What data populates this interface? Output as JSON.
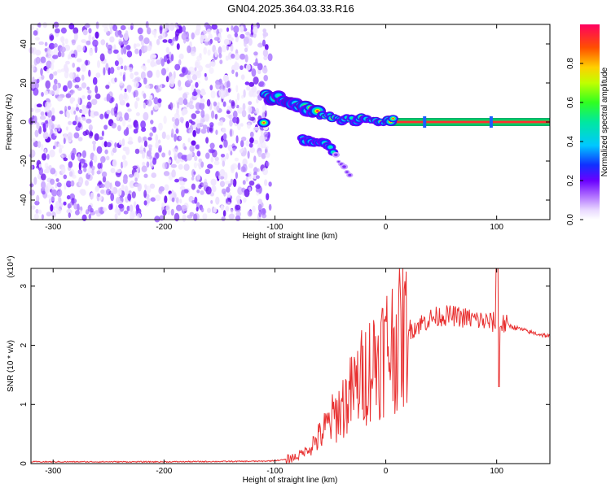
{
  "title": "GN04.2025.364.03.33.R16",
  "chart_data": [
    {
      "type": "heatmap",
      "title": "GN04.2025.364.03.33.R16",
      "xlabel": "Height of straight line (km)",
      "ylabel": "Frequency (Hz)",
      "xlim": [
        -320,
        148
      ],
      "ylim": [
        -50,
        50
      ],
      "x_ticks": [
        "-300",
        "-200",
        "-100",
        "0",
        "100"
      ],
      "y_ticks": [
        "-40",
        "-20",
        "0",
        "20",
        "40"
      ],
      "colorbar": {
        "label": "Normalized spectral amplitude",
        "range": [
          0,
          1
        ],
        "ticks": [
          "0.0",
          "0.2",
          "0.4",
          "0.6",
          "0.8"
        ]
      },
      "features": {
        "noise_region_x": [
          -320,
          -110
        ],
        "trace": [
          {
            "x": -108,
            "y": 13
          },
          {
            "x": -95,
            "y": 12
          },
          {
            "x": -85,
            "y": 10
          },
          {
            "x": -75,
            "y": 8
          },
          {
            "x": -60,
            "y": 4
          },
          {
            "x": -45,
            "y": 2
          },
          {
            "x": -30,
            "y": 1
          },
          {
            "x": -10,
            "y": 1
          },
          {
            "x": 5,
            "y": 0.5
          },
          {
            "x": 148,
            "y": 0
          }
        ],
        "lower_branch": [
          {
            "x": -75,
            "y": -9
          },
          {
            "x": -65,
            "y": -10
          },
          {
            "x": -50,
            "y": -12
          },
          {
            "x": -40,
            "y": -22
          },
          {
            "x": -32,
            "y": -28
          }
        ]
      }
    },
    {
      "type": "line",
      "xlabel": "Height of straight line (km)",
      "ylabel": "SNR (10 * v/v)",
      "y_multiplier": "(x10⁴)",
      "xlim": [
        -320,
        148
      ],
      "ylim": [
        0,
        3.3
      ],
      "x_ticks": [
        "-300",
        "-200",
        "-100",
        "0",
        "100"
      ],
      "y_ticks": [
        "0",
        "1",
        "2",
        "3"
      ],
      "series": [
        {
          "color": "#e83030",
          "x": [
            -320,
            -200,
            -110,
            -100,
            -90,
            -80,
            -70,
            -60,
            -50,
            -40,
            -30,
            -20,
            -10,
            0,
            10,
            20,
            30,
            40,
            50,
            60,
            70,
            80,
            90,
            100,
            110,
            120,
            130,
            148
          ],
          "y": [
            0.03,
            0.03,
            0.04,
            0.05,
            0.07,
            0.12,
            0.25,
            0.45,
            0.7,
            0.95,
            1.2,
            1.5,
            1.75,
            1.95,
            2.1,
            2.25,
            2.35,
            2.45,
            2.5,
            2.5,
            2.47,
            2.44,
            2.4,
            2.38,
            2.34,
            2.28,
            2.22,
            2.15
          ]
        }
      ]
    }
  ]
}
